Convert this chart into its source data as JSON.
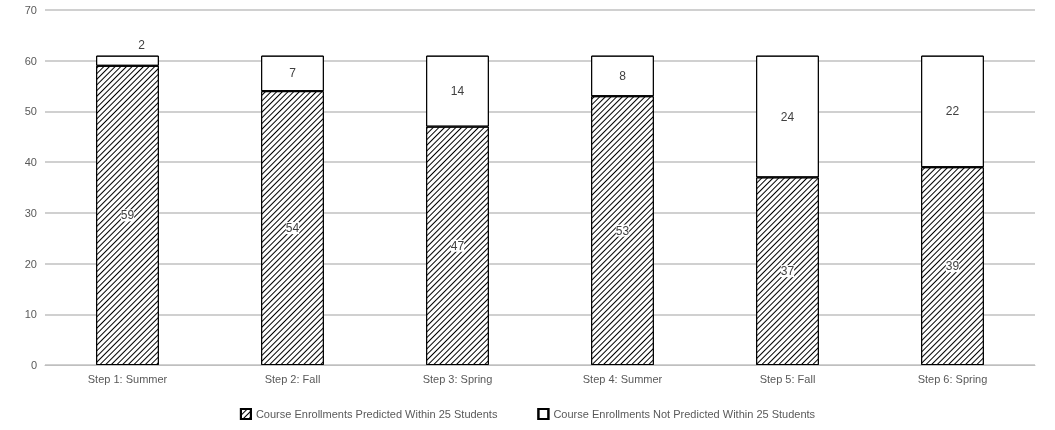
{
  "chart_data": {
    "type": "bar",
    "stacked": true,
    "data_labels": true,
    "grid": "y",
    "legend": "bottom",
    "categories": [
      "Step 1: Summer",
      "Step 2: Fall",
      "Step 3: Spring",
      "Step 4: Summer",
      "Step 5: Fall",
      "Step 6: Spring"
    ],
    "series": [
      {
        "name": "Course Enrollments Predicted Within 25 Students",
        "color": "#000000",
        "values": [
          59,
          54,
          47,
          53,
          37,
          39
        ]
      },
      {
        "name": "Course Enrollments Not Predicted Within 25 Students",
        "color": "#ffffff",
        "values": [
          2,
          7,
          14,
          8,
          24,
          22
        ]
      }
    ],
    "ylim": [
      0,
      70
    ],
    "yticks": [
      0,
      10,
      20,
      30,
      40,
      50,
      60,
      70
    ]
  }
}
